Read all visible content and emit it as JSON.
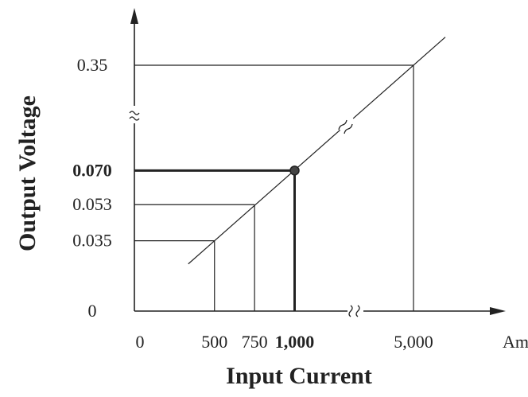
{
  "chart_data": {
    "type": "line",
    "title": "",
    "xlabel": "Input Current",
    "ylabel": "Output Voltage",
    "x_unit": "Amp",
    "x_ticks": [
      "0",
      "500",
      "750",
      "1,000",
      "5,000"
    ],
    "y_ticks": [
      "0",
      "0.035",
      "0.053",
      "0.070",
      "0.35"
    ],
    "axis_breaks": [
      "x",
      "y",
      "line"
    ],
    "series": [
      {
        "values": [
          {
            "x": 500,
            "y": 0.035
          },
          {
            "x": 750,
            "y": 0.053
          },
          {
            "x": 1000,
            "y": 0.07
          },
          {
            "x": 5000,
            "y": 0.35
          }
        ]
      }
    ],
    "highlight": {
      "x": 1000,
      "y": 0.07,
      "x_label": "1,000",
      "y_label": "0.070"
    },
    "colors": {
      "line": "#222222",
      "highlight": "#222222"
    }
  }
}
